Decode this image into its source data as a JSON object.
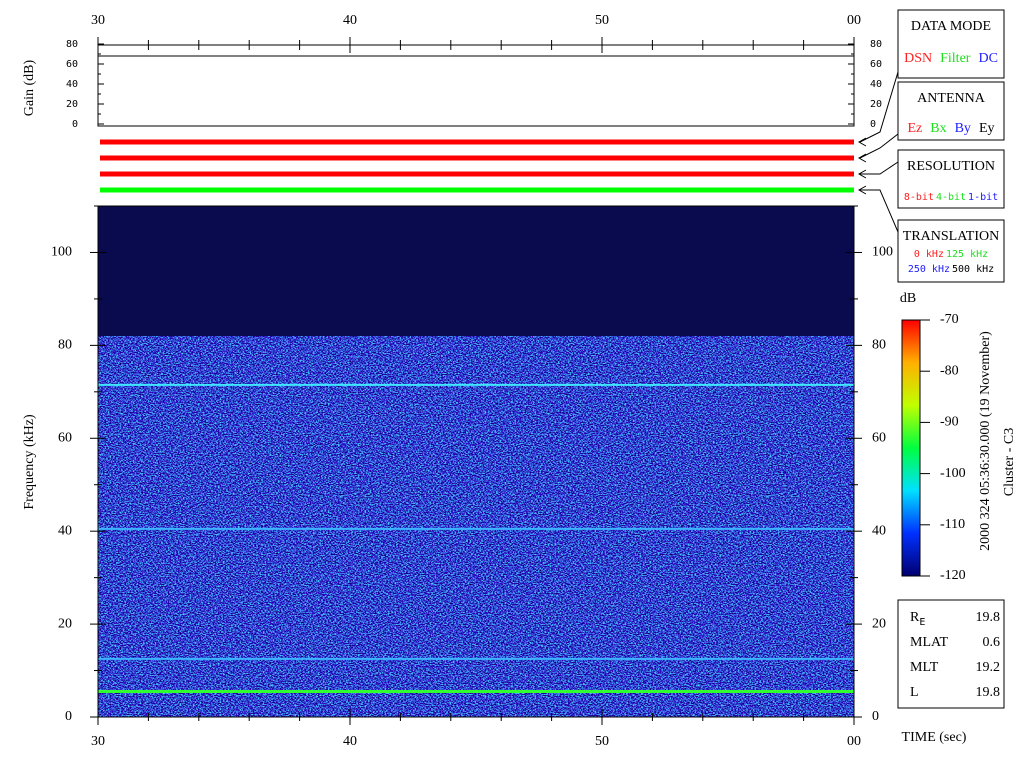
{
  "chart_data": {
    "type": "spectrogram",
    "xlim": [
      30,
      60
    ],
    "xticks": [
      30,
      40,
      50,
      {
        "value": 60,
        "label": "00"
      }
    ],
    "xminorticks": [
      32,
      34,
      36,
      38,
      42,
      44,
      46,
      48,
      52,
      54,
      56,
      58
    ],
    "x_label": "TIME (sec)",
    "gain": {
      "label": "Gain (dB)",
      "ylim": [
        0,
        80
      ],
      "yticks": [
        0,
        20,
        40,
        60,
        80
      ],
      "yminorticks": [
        10,
        30,
        50,
        70
      ],
      "value": 68
    },
    "modes": [
      {
        "color": "#ff0000"
      },
      {
        "color": "#ff0000"
      },
      {
        "color": "#ff0000"
      },
      {
        "color": "#00ff00"
      }
    ],
    "ylim": [
      0,
      110
    ],
    "yticks": [
      0,
      20,
      40,
      60,
      80,
      100
    ],
    "yminorticks": [
      10,
      30,
      50,
      70,
      90,
      110
    ],
    "y_label": "Frequency (kHz)",
    "background_color": "#0a0a4e",
    "noise_top": 82,
    "lines": [
      {
        "value": 71.5,
        "color": "#40e8ff"
      },
      {
        "value": 40.5,
        "color": "#3cb4ff"
      },
      {
        "value": 12.5,
        "color": "#3cb4ff"
      },
      {
        "value": 5.5,
        "color": "#30ff30"
      }
    ],
    "colorbar": {
      "label": "dB",
      "clim": [
        -120,
        -70
      ],
      "ticks": [
        -120,
        -110,
        -100,
        -90,
        -80,
        -70
      ],
      "colors": [
        "#000070",
        "#0030ff",
        "#00e0ff",
        "#00ff40",
        "#c0ff00",
        "#ffb000",
        "#ff0000"
      ]
    }
  },
  "legend": [
    {
      "title": "DATA MODE",
      "rows": [
        [
          {
            "text": "DSN",
            "color": "#ff2020"
          },
          {
            "text": "Filter",
            "color": "#20e020"
          },
          {
            "text": "DC",
            "color": "#2020ff"
          }
        ]
      ]
    },
    {
      "title": "ANTENNA",
      "rows": [
        [
          {
            "text": "Ez",
            "color": "#ff2020"
          },
          {
            "text": "Bx",
            "color": "#20e020"
          },
          {
            "text": "By",
            "color": "#2020ff"
          },
          {
            "text": "Ey",
            "color": "#000000"
          }
        ]
      ]
    },
    {
      "title": "RESOLUTION",
      "rows": [
        [
          {
            "text": "8-bit",
            "color": "#ff2020"
          },
          {
            "text": "4-bit",
            "color": "#20e020"
          },
          {
            "text": "1-bit",
            "color": "#2020ff"
          }
        ]
      ]
    },
    {
      "title": "TRANSLATION",
      "rows": [
        [
          {
            "text": "0 kHz",
            "color": "#ff2020"
          },
          {
            "text": "125 kHz",
            "color": "#20e020"
          }
        ],
        [
          {
            "text": "250 kHz",
            "color": "#2020ff"
          },
          {
            "text": "500 kHz",
            "color": "#000000"
          }
        ]
      ]
    }
  ],
  "info": [
    {
      "label": "R",
      "sub": "E",
      "value": 19.8
    },
    {
      "label": "MLAT",
      "value": 0.6
    },
    {
      "label": "MLT",
      "value": 19.2
    },
    {
      "label": "L",
      "value": 19.8
    }
  ],
  "timestamp": "2000 324 05:36:30.000 (19 November)",
  "spacecraft": "Cluster - C3"
}
